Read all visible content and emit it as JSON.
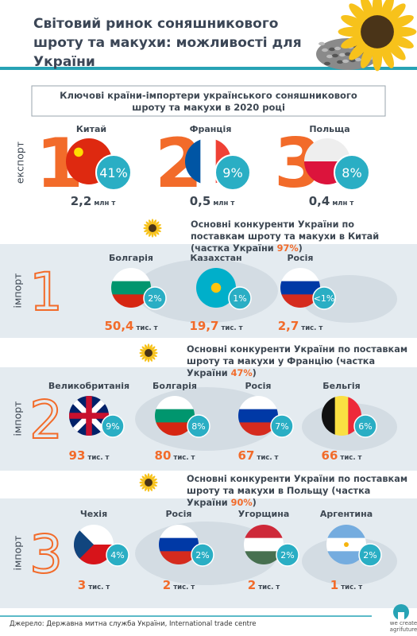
{
  "header": {
    "title": "Світовий ринок соняшникового шроту та макухи: можливості для України"
  },
  "export": {
    "title": "Ключові країни-імпортери українського соняшникового шроту та макухи в 2020 році",
    "side_label": "експорт",
    "items": [
      {
        "rank": "1",
        "country": "Китай",
        "share": "41%",
        "amount": "2,2",
        "unit": "млн т"
      },
      {
        "rank": "2",
        "country": "Франція",
        "share": "9%",
        "amount": "0,5",
        "unit": "млн т"
      },
      {
        "rank": "3",
        "country": "Польща",
        "share": "8%",
        "amount": "0,4",
        "unit": "млн т"
      }
    ]
  },
  "imports": [
    {
      "heading": "Основні конкуренти України по поставкам шроту та макухи в Китай (частка України ",
      "share": "97%",
      "heading_end": ")",
      "side_label": "імпорт",
      "rank": "1",
      "items": [
        {
          "country": "Болгарія",
          "share": "2%",
          "amount": "50,4",
          "unit": "тис. т"
        },
        {
          "country": "Казахстан",
          "share": "1%",
          "amount": "19,7",
          "unit": "тис. т"
        },
        {
          "country": "Росія",
          "share": "<1%",
          "amount": "2,7",
          "unit": "тис. т"
        }
      ]
    },
    {
      "heading": "Основні конкуренти України по поставкам шроту та макухи у Францію (частка України ",
      "share": "47%",
      "heading_end": ")",
      "side_label": "імпорт",
      "rank": "2",
      "items": [
        {
          "country": "Великобританія",
          "share": "9%",
          "amount": "93",
          "unit": "тис. т"
        },
        {
          "country": "Болгарія",
          "share": "8%",
          "amount": "80",
          "unit": "тис. т"
        },
        {
          "country": "Росія",
          "share": "7%",
          "amount": "67",
          "unit": "тис. т"
        },
        {
          "country": "Бельгія",
          "share": "6%",
          "amount": "66",
          "unit": "тис. т"
        }
      ]
    },
    {
      "heading": "Основні конкуренти України по поставкам шроту та макухи в Польщу (частка України ",
      "share": "90%",
      "heading_end": ")",
      "side_label": "імпорт",
      "rank": "3",
      "items": [
        {
          "country": "Чехія",
          "share": "4%",
          "amount": "3",
          "unit": "тис. т"
        },
        {
          "country": "Росія",
          "share": "2%",
          "amount": "2",
          "unit": "тис. т"
        },
        {
          "country": "Угорщина",
          "share": "2%",
          "amount": "2",
          "unit": "тис. т"
        },
        {
          "country": "Аргентина",
          "share": "2%",
          "amount": "1",
          "unit": "тис. т"
        }
      ]
    }
  ],
  "footer": {
    "source": "Джерело: Державна митна служба України, International trade centre",
    "logo": [
      "we create",
      "agrifuture"
    ]
  }
}
